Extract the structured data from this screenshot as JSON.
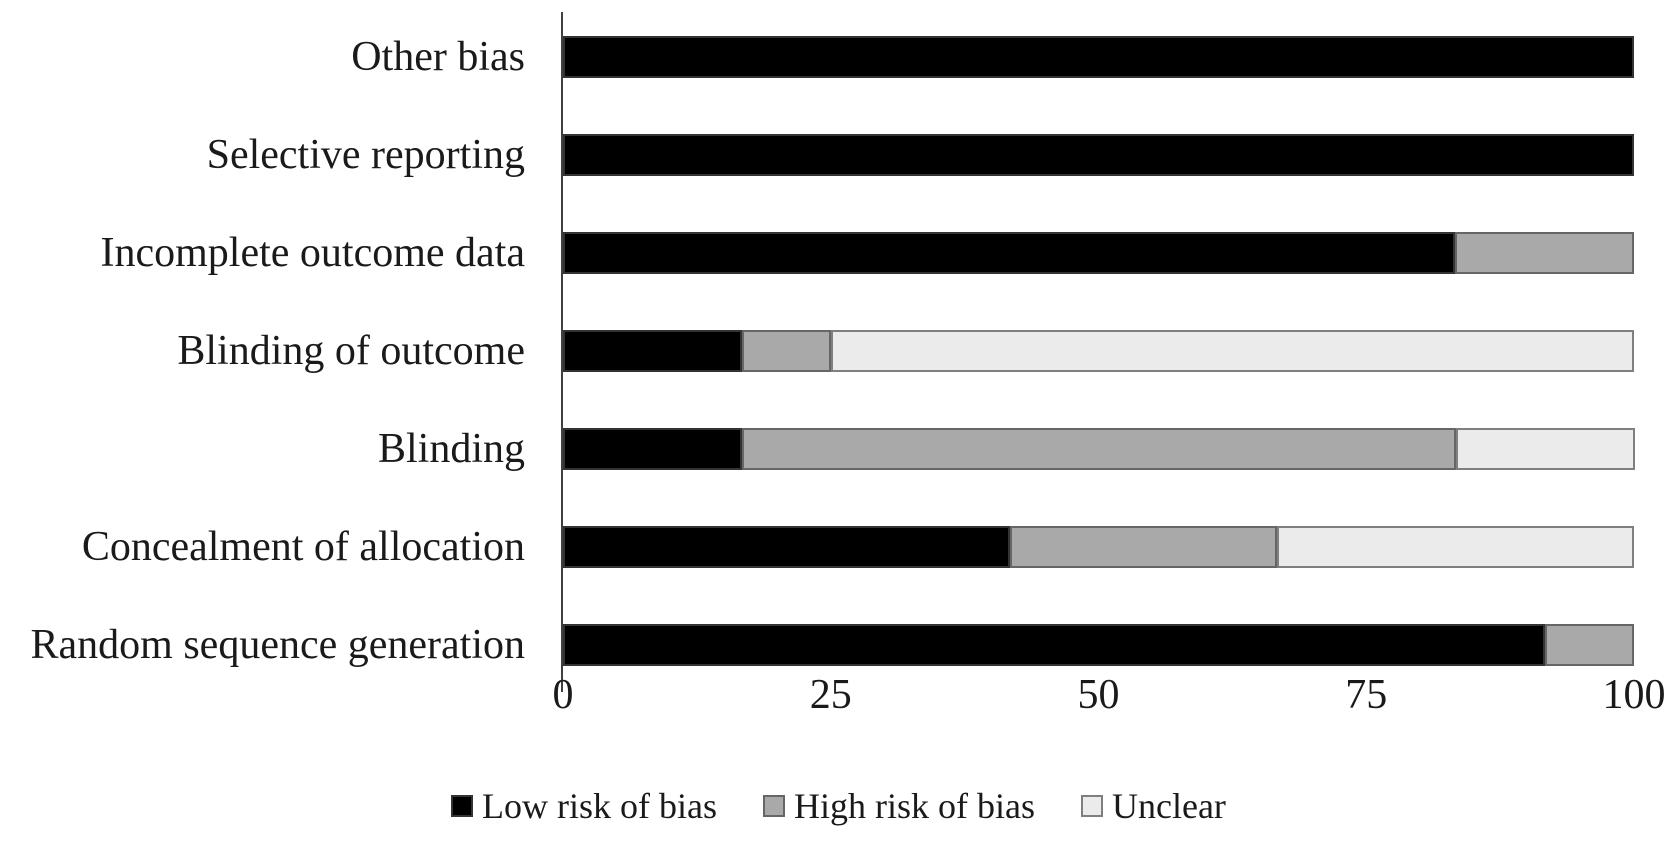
{
  "chart_data": {
    "type": "bar",
    "orientation": "horizontal",
    "stacked": true,
    "title": "",
    "xlabel": "",
    "ylabel": "",
    "xlim": [
      0,
      100
    ],
    "x_ticks": [
      "0",
      "25",
      "50",
      "75",
      "100"
    ],
    "grid": false,
    "legend_position": "bottom",
    "categories": [
      "Other bias",
      "Selective reporting",
      "Incomplete outcome data",
      "Blinding of outcome",
      "Blinding",
      "Concealment of allocation",
      "Random sequence generation"
    ],
    "series": [
      {
        "name": "Low risk of bias",
        "color": "#000000",
        "border_color": "#333333",
        "values": [
          100,
          100,
          83.3,
          16.7,
          16.7,
          41.7,
          91.7
        ]
      },
      {
        "name": "High risk of bias",
        "color": "#a9a9a9",
        "border_color": "#666666",
        "values": [
          0,
          0,
          16.7,
          8.3,
          66.7,
          25.0,
          8.3
        ]
      },
      {
        "name": "Unclear",
        "color": "#ebebeb",
        "border_color": "#7f7f7f",
        "values": [
          0,
          0,
          0,
          75.0,
          16.7,
          33.3,
          0
        ]
      }
    ],
    "axis_color": "#404040"
  }
}
